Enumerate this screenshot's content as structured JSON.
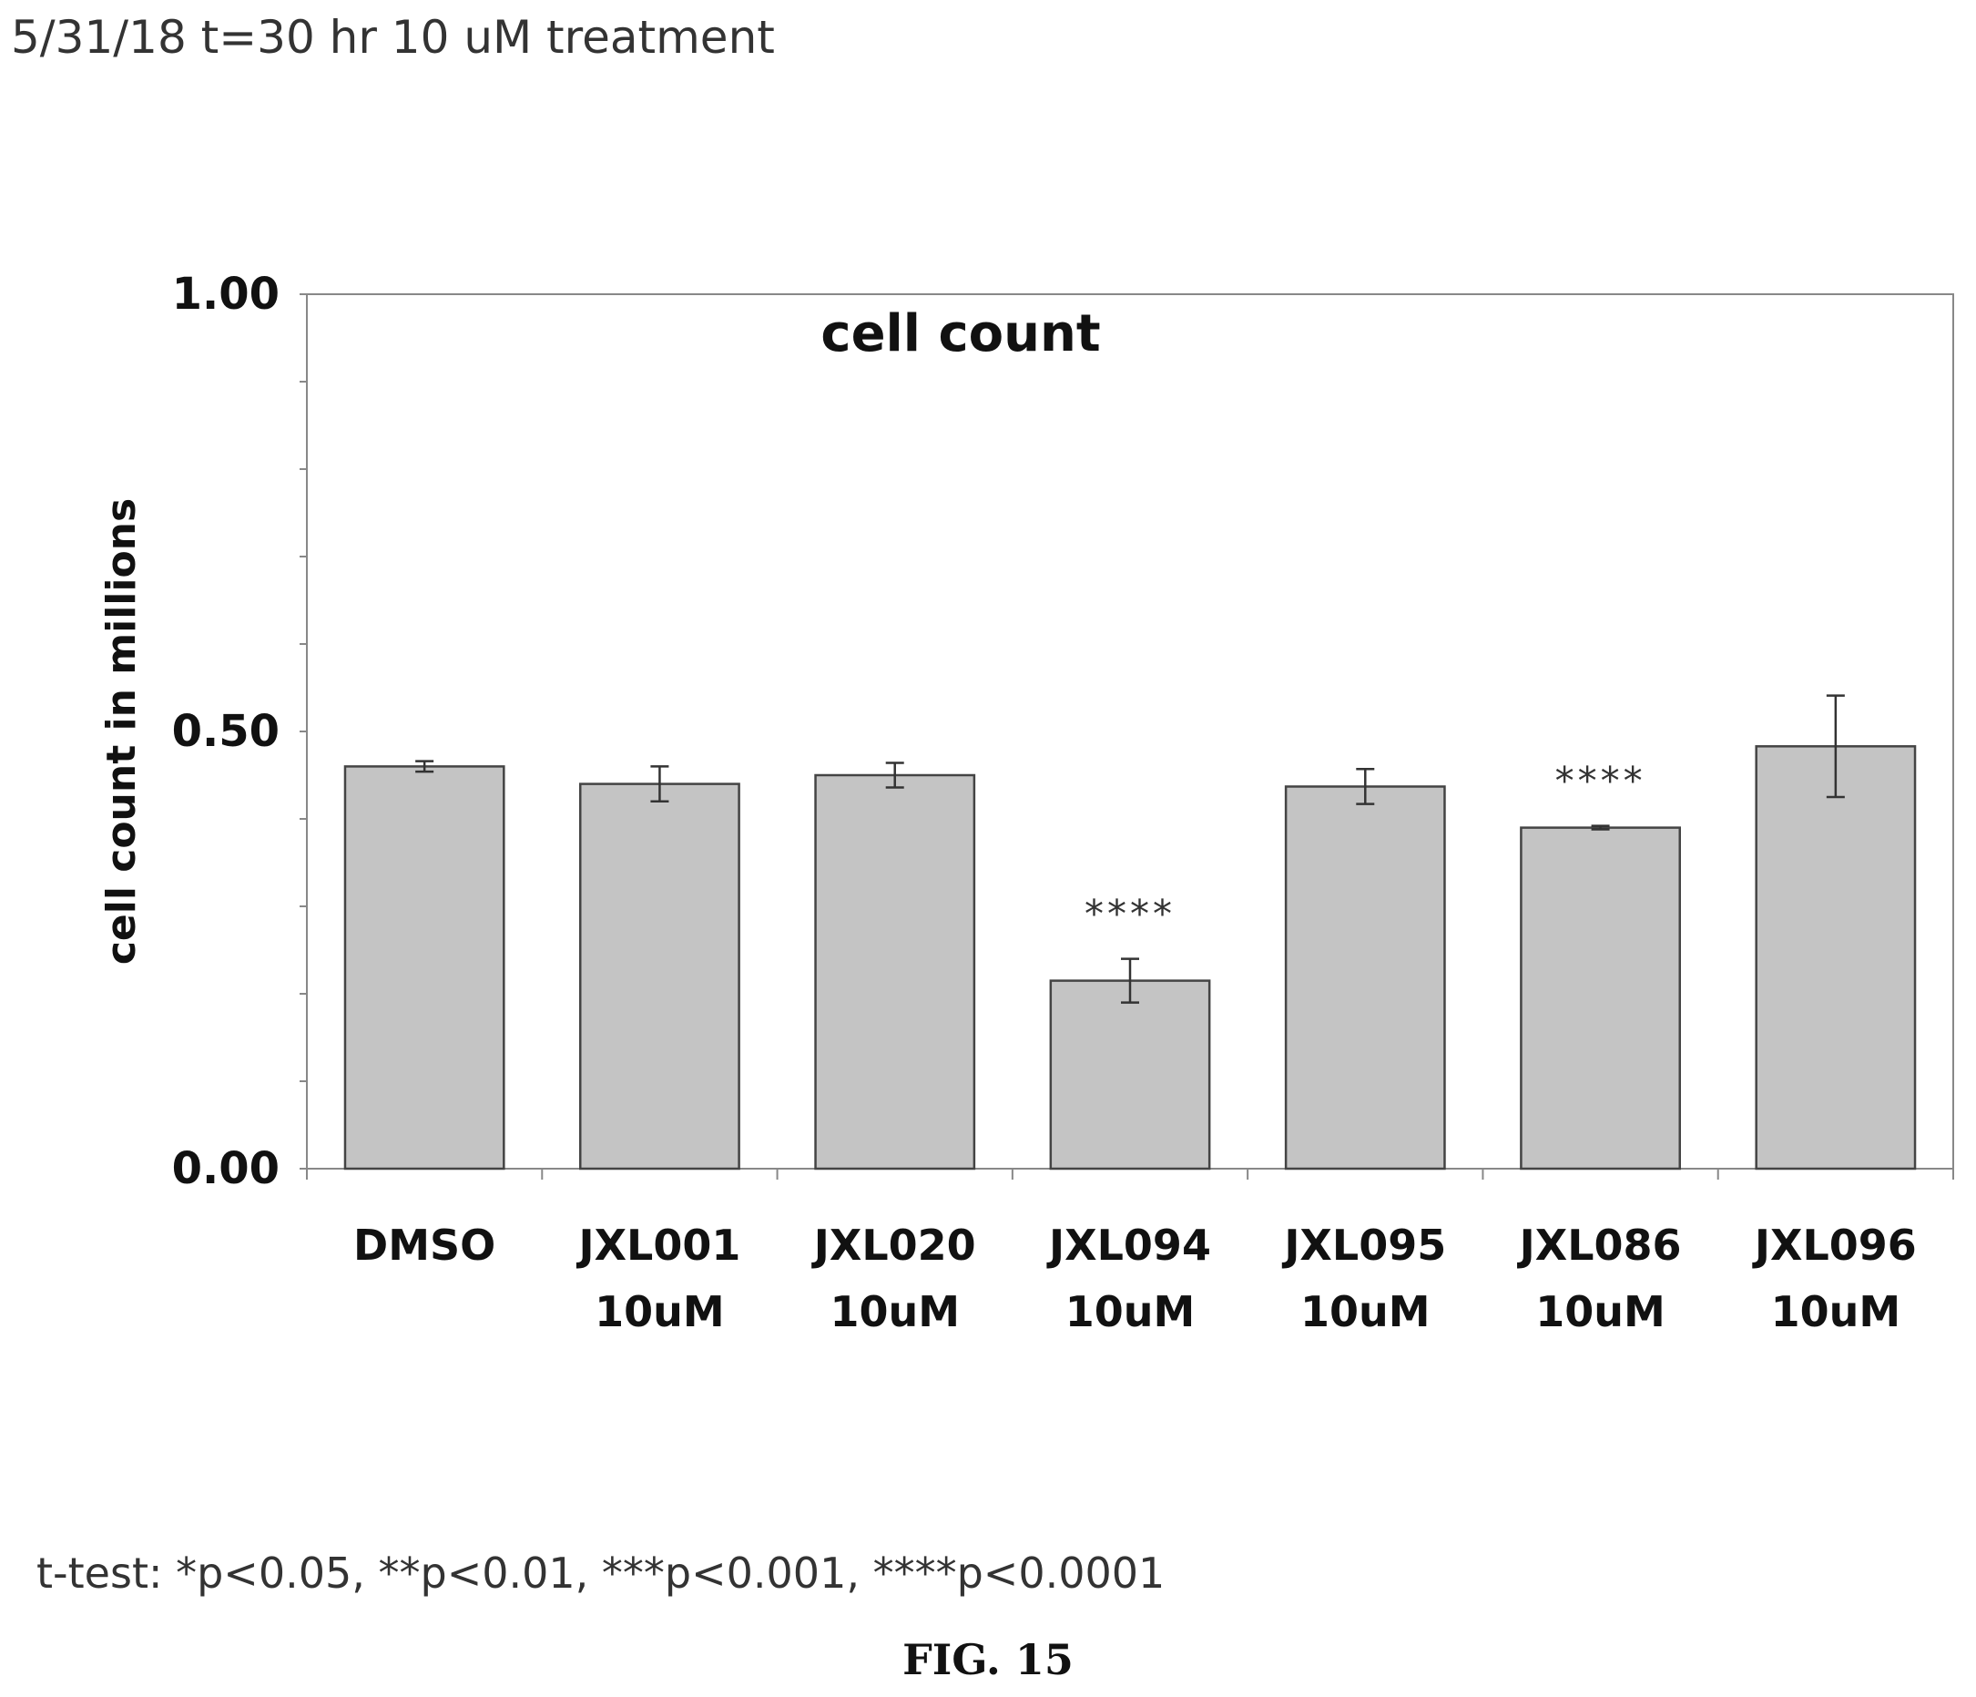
{
  "header": {
    "text": "5/31/18 t=30 hr 10 uM treatment"
  },
  "footnote": {
    "text": "t-test: *p<0.05, **p<0.01, ***p<0.001, ****p<0.0001"
  },
  "figure_label": "FIG. 15",
  "colors": {
    "bar_fill": "#c4c4c4",
    "bar_stroke": "#444444",
    "axis": "#888888"
  },
  "chart_data": {
    "type": "bar",
    "title": "cell count",
    "xlabel": "",
    "ylabel": "cell count in millions",
    "ylim": [
      0,
      1
    ],
    "yticks": [
      {
        "value": 0,
        "label": "0.00"
      },
      {
        "value": 0.5,
        "label": "0.50"
      },
      {
        "value": 1,
        "label": "1.00"
      }
    ],
    "categories": [
      [
        "DMSO"
      ],
      [
        "JXL001",
        "10uM"
      ],
      [
        "JXL020",
        "10uM"
      ],
      [
        "JXL094",
        "10uM"
      ],
      [
        "JXL095",
        "10uM"
      ],
      [
        "JXL086",
        "10uM"
      ],
      [
        "JXL096",
        "10uM"
      ]
    ],
    "values": [
      0.46,
      0.44,
      0.45,
      0.215,
      0.437,
      0.39,
      0.483
    ],
    "error": [
      0.006,
      0.02,
      0.014,
      0.025,
      0.02,
      0.002,
      0.058
    ],
    "significance": [
      "",
      "",
      "",
      "****",
      "",
      "****",
      ""
    ],
    "grid": false,
    "legend": "none"
  }
}
